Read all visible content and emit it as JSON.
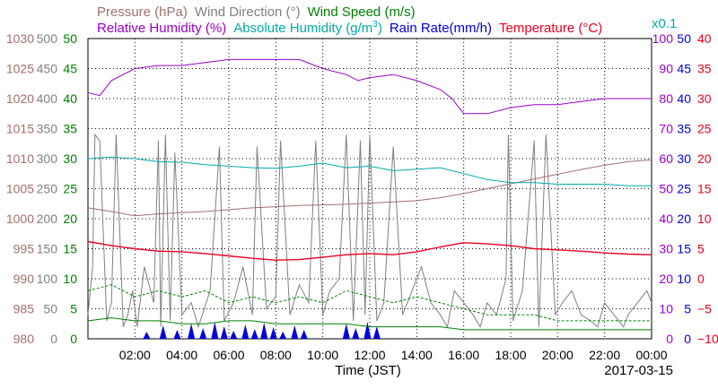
{
  "chart_data": {
    "type": "line",
    "date": "2017-03-15",
    "xlabel": "Time (JST)",
    "x_range": [
      "00:00",
      "24:00"
    ],
    "x_ticks": [
      "02:00",
      "04:00",
      "06:00",
      "08:00",
      "10:00",
      "12:00",
      "14:00",
      "16:00",
      "18:00",
      "20:00",
      "22:00",
      "00:00"
    ],
    "grid": true,
    "legend": {
      "row1": [
        {
          "key": "pressure",
          "label": "Pressure (hPa)",
          "color": "#a0706c"
        },
        {
          "key": "wind_direction",
          "label": "Wind Direction (°)",
          "color": "#808080"
        },
        {
          "key": "wind_speed",
          "label": "Wind Speed (m/s)",
          "color": "#008000"
        }
      ],
      "row2": [
        {
          "key": "relative_humidity",
          "label": "Relative Humidity (%)",
          "color": "#9900cc"
        },
        {
          "key": "absolute_humidity_a",
          "label": "Absolute Humidity (g/m",
          "color": "#00aaaa"
        },
        {
          "key": "absolute_humidity_sup",
          "label": "3",
          "color": "#00aaaa"
        },
        {
          "key": "absolute_humidity_b",
          "label": ")",
          "color": "#00aaaa"
        },
        {
          "key": "rain_rate",
          "label": "Rain Rate(mm/h)",
          "color": "#0000dd"
        },
        {
          "key": "temperature",
          "label": "Temperature (°C)",
          "color": "#ee0022"
        }
      ],
      "multiplier": {
        "label": "x0.1",
        "color": "#00aaaa"
      }
    },
    "axes": {
      "left_pressure": {
        "ticks": [
          "980",
          "985",
          "990",
          "995",
          "1000",
          "1005",
          "1010",
          "1015",
          "1020",
          "1025",
          "1030"
        ],
        "range": [
          980,
          1030
        ],
        "color": "#a0706c"
      },
      "left_wind_direction": {
        "ticks": [
          "0",
          "50",
          "100",
          "150",
          "200",
          "250",
          "300",
          "350",
          "400",
          "450",
          "500"
        ],
        "range": [
          0,
          500
        ],
        "color": "#808080"
      },
      "left_wind_speed": {
        "ticks": [
          "0",
          "5",
          "10",
          "15",
          "20",
          "25",
          "30",
          "35",
          "40",
          "45",
          "50"
        ],
        "range": [
          0,
          50
        ],
        "color": "#008000"
      },
      "right_humidity": {
        "ticks": [
          "0",
          "10",
          "20",
          "30",
          "40",
          "50",
          "60",
          "70",
          "80",
          "90",
          "100"
        ],
        "range": [
          0,
          100
        ],
        "color": "#9900cc"
      },
      "right_rain": {
        "ticks": [
          "0",
          "5",
          "10",
          "15",
          "20",
          "25",
          "30",
          "35",
          "40",
          "45",
          "50"
        ],
        "range": [
          0,
          50
        ],
        "color": "#0000dd"
      },
      "right_temperature": {
        "ticks": [
          "−10",
          "−5",
          "0",
          "5",
          "10",
          "15",
          "20",
          "25",
          "30",
          "35",
          "40"
        ],
        "range": [
          -10,
          40
        ],
        "color": "#ee0022"
      }
    },
    "series": [
      {
        "name": "Pressure (hPa)",
        "axis": "left_pressure",
        "color": "#a0706c",
        "x": [
          0,
          1,
          2,
          3,
          4,
          5,
          6,
          7,
          8,
          9,
          10,
          11,
          12,
          13,
          14,
          15,
          16,
          17,
          18,
          19,
          20,
          21,
          22,
          23,
          24
        ],
        "values": [
          1001.8,
          1001.2,
          1000.5,
          1000.8,
          1001.0,
          1001.2,
          1001.5,
          1001.8,
          1002.0,
          1002.2,
          1002.3,
          1002.4,
          1002.6,
          1002.8,
          1003.0,
          1003.5,
          1004.2,
          1005.0,
          1005.8,
          1006.6,
          1007.4,
          1008.2,
          1008.9,
          1009.5,
          1009.8
        ]
      },
      {
        "name": "Relative Humidity (%)",
        "axis": "right_humidity",
        "color": "#9900cc",
        "x": [
          0,
          0.5,
          1,
          1.5,
          2,
          3,
          4,
          5,
          6,
          7,
          8,
          9,
          10,
          11,
          11.5,
          12,
          13,
          14,
          15,
          15.5,
          16,
          17,
          18,
          19,
          20,
          21,
          22,
          23,
          24
        ],
        "values": [
          82,
          81,
          86,
          88,
          90,
          91,
          91,
          92,
          93,
          93,
          93,
          93,
          90,
          88,
          86,
          87,
          88,
          86,
          83,
          80,
          75,
          75,
          77,
          78,
          78,
          79,
          80,
          80,
          80
        ]
      },
      {
        "name": "Absolute Humidity",
        "axis": "right_humidity",
        "color": "#00aaaa",
        "x": [
          0,
          1,
          2,
          3,
          4,
          5,
          6,
          7,
          8,
          9,
          10,
          11,
          12,
          13,
          14,
          15,
          16,
          17,
          18,
          19,
          20,
          21,
          22,
          23,
          24
        ],
        "values": [
          60,
          60.5,
          60,
          59,
          58.8,
          58,
          57.5,
          57,
          56.8,
          57.5,
          58.5,
          57,
          57.5,
          56,
          56.5,
          57,
          55,
          53,
          52,
          52,
          51.5,
          51.5,
          51.5,
          51,
          51
        ]
      },
      {
        "name": "Temperature (°C)",
        "axis": "right_temperature",
        "color": "#ee0022",
        "x": [
          0,
          1,
          2,
          3,
          4,
          5,
          6,
          7,
          8,
          9,
          10,
          11,
          12,
          13,
          14,
          15,
          16,
          17,
          18,
          19,
          20,
          21,
          22,
          23,
          24
        ],
        "values": [
          6.2,
          5.5,
          5.0,
          4.6,
          4.5,
          4.2,
          3.8,
          3.4,
          3.1,
          3.2,
          3.6,
          4.0,
          4.2,
          4.0,
          4.5,
          5.3,
          6.0,
          5.8,
          5.5,
          5.0,
          4.8,
          4.6,
          4.3,
          4.1,
          4.0
        ]
      },
      {
        "name": "Wind Speed (m/s)",
        "axis": "left_wind_speed",
        "color": "#008000",
        "x": [
          0,
          1,
          2,
          3,
          4,
          5,
          6,
          7,
          8,
          9,
          10,
          11,
          12,
          13,
          14,
          15,
          16,
          17,
          18,
          19,
          20,
          21,
          22,
          23,
          24
        ],
        "values": [
          3,
          3.5,
          3,
          3,
          2.5,
          2.5,
          3,
          3,
          2.5,
          2.5,
          2.5,
          2.5,
          2,
          2,
          2,
          2,
          1.5,
          1.5,
          1.5,
          1.5,
          1.5,
          1.5,
          1.5,
          1.5,
          1.5
        ]
      },
      {
        "name": "Wind Speed (m/s) gust",
        "axis": "left_wind_speed",
        "color": "#008000",
        "dashed": true,
        "x": [
          0,
          1,
          2,
          3,
          4,
          5,
          6,
          7,
          8,
          9,
          10,
          11,
          12,
          13,
          14,
          15,
          16,
          17,
          18,
          19,
          20,
          21,
          22,
          23,
          24
        ],
        "values": [
          8,
          9,
          7,
          8,
          7,
          8,
          6,
          7,
          6,
          7,
          6,
          8,
          7,
          6,
          7,
          6,
          5,
          4,
          4,
          4,
          3,
          3,
          3,
          3,
          3
        ]
      },
      {
        "name": "Wind Direction (°)",
        "axis": "left_wind_direction",
        "color": "#808080",
        "x": [
          0,
          0.2,
          0.3,
          0.5,
          0.8,
          1,
          1.2,
          1.5,
          1.7,
          1.9,
          2.1,
          2.4,
          2.8,
          3,
          3.1,
          3.3,
          3.5,
          3.7,
          4,
          4.4,
          4.7,
          5.2,
          5.6,
          5.8,
          6.2,
          6.6,
          7,
          7.2,
          7.6,
          8,
          8.2,
          8.6,
          9,
          9.4,
          9.7,
          10,
          10.3,
          10.7,
          11,
          11.3,
          11.6,
          11.8,
          12,
          12.3,
          12.6,
          13,
          13.4,
          13.8,
          14.2,
          14.6,
          15,
          15.3,
          15.6,
          16,
          16.4,
          16.7,
          17,
          17.4,
          17.8,
          17.9,
          18.1,
          18.5,
          19,
          19.2,
          19.5,
          19.9,
          20.2,
          20.6,
          21,
          21.4,
          21.7,
          22,
          22.4,
          22.8,
          23,
          23.4,
          23.8,
          24
        ],
        "values": [
          40,
          120,
          340,
          330,
          30,
          60,
          340,
          20,
          40,
          80,
          20,
          120,
          60,
          330,
          20,
          340,
          30,
          310,
          40,
          60,
          20,
          80,
          320,
          30,
          60,
          120,
          40,
          320,
          50,
          70,
          330,
          40,
          90,
          60,
          330,
          40,
          80,
          100,
          340,
          30,
          330,
          40,
          340,
          30,
          60,
          320,
          40,
          80,
          120,
          60,
          40,
          20,
          80,
          60,
          40,
          20,
          60,
          40,
          100,
          340,
          30,
          80,
          330,
          20,
          340,
          40,
          60,
          80,
          40,
          30,
          20,
          60,
          40,
          20,
          40,
          60,
          80,
          60
        ]
      }
    ],
    "rain_bursts_hours": [
      2.5,
      3.2,
      3.8,
      4.4,
      4.9,
      5.4,
      5.8,
      6.2,
      6.7,
      7.1,
      7.5,
      7.9,
      8.3,
      8.8,
      9.2,
      11.0,
      11.4,
      11.9,
      12.3
    ]
  }
}
